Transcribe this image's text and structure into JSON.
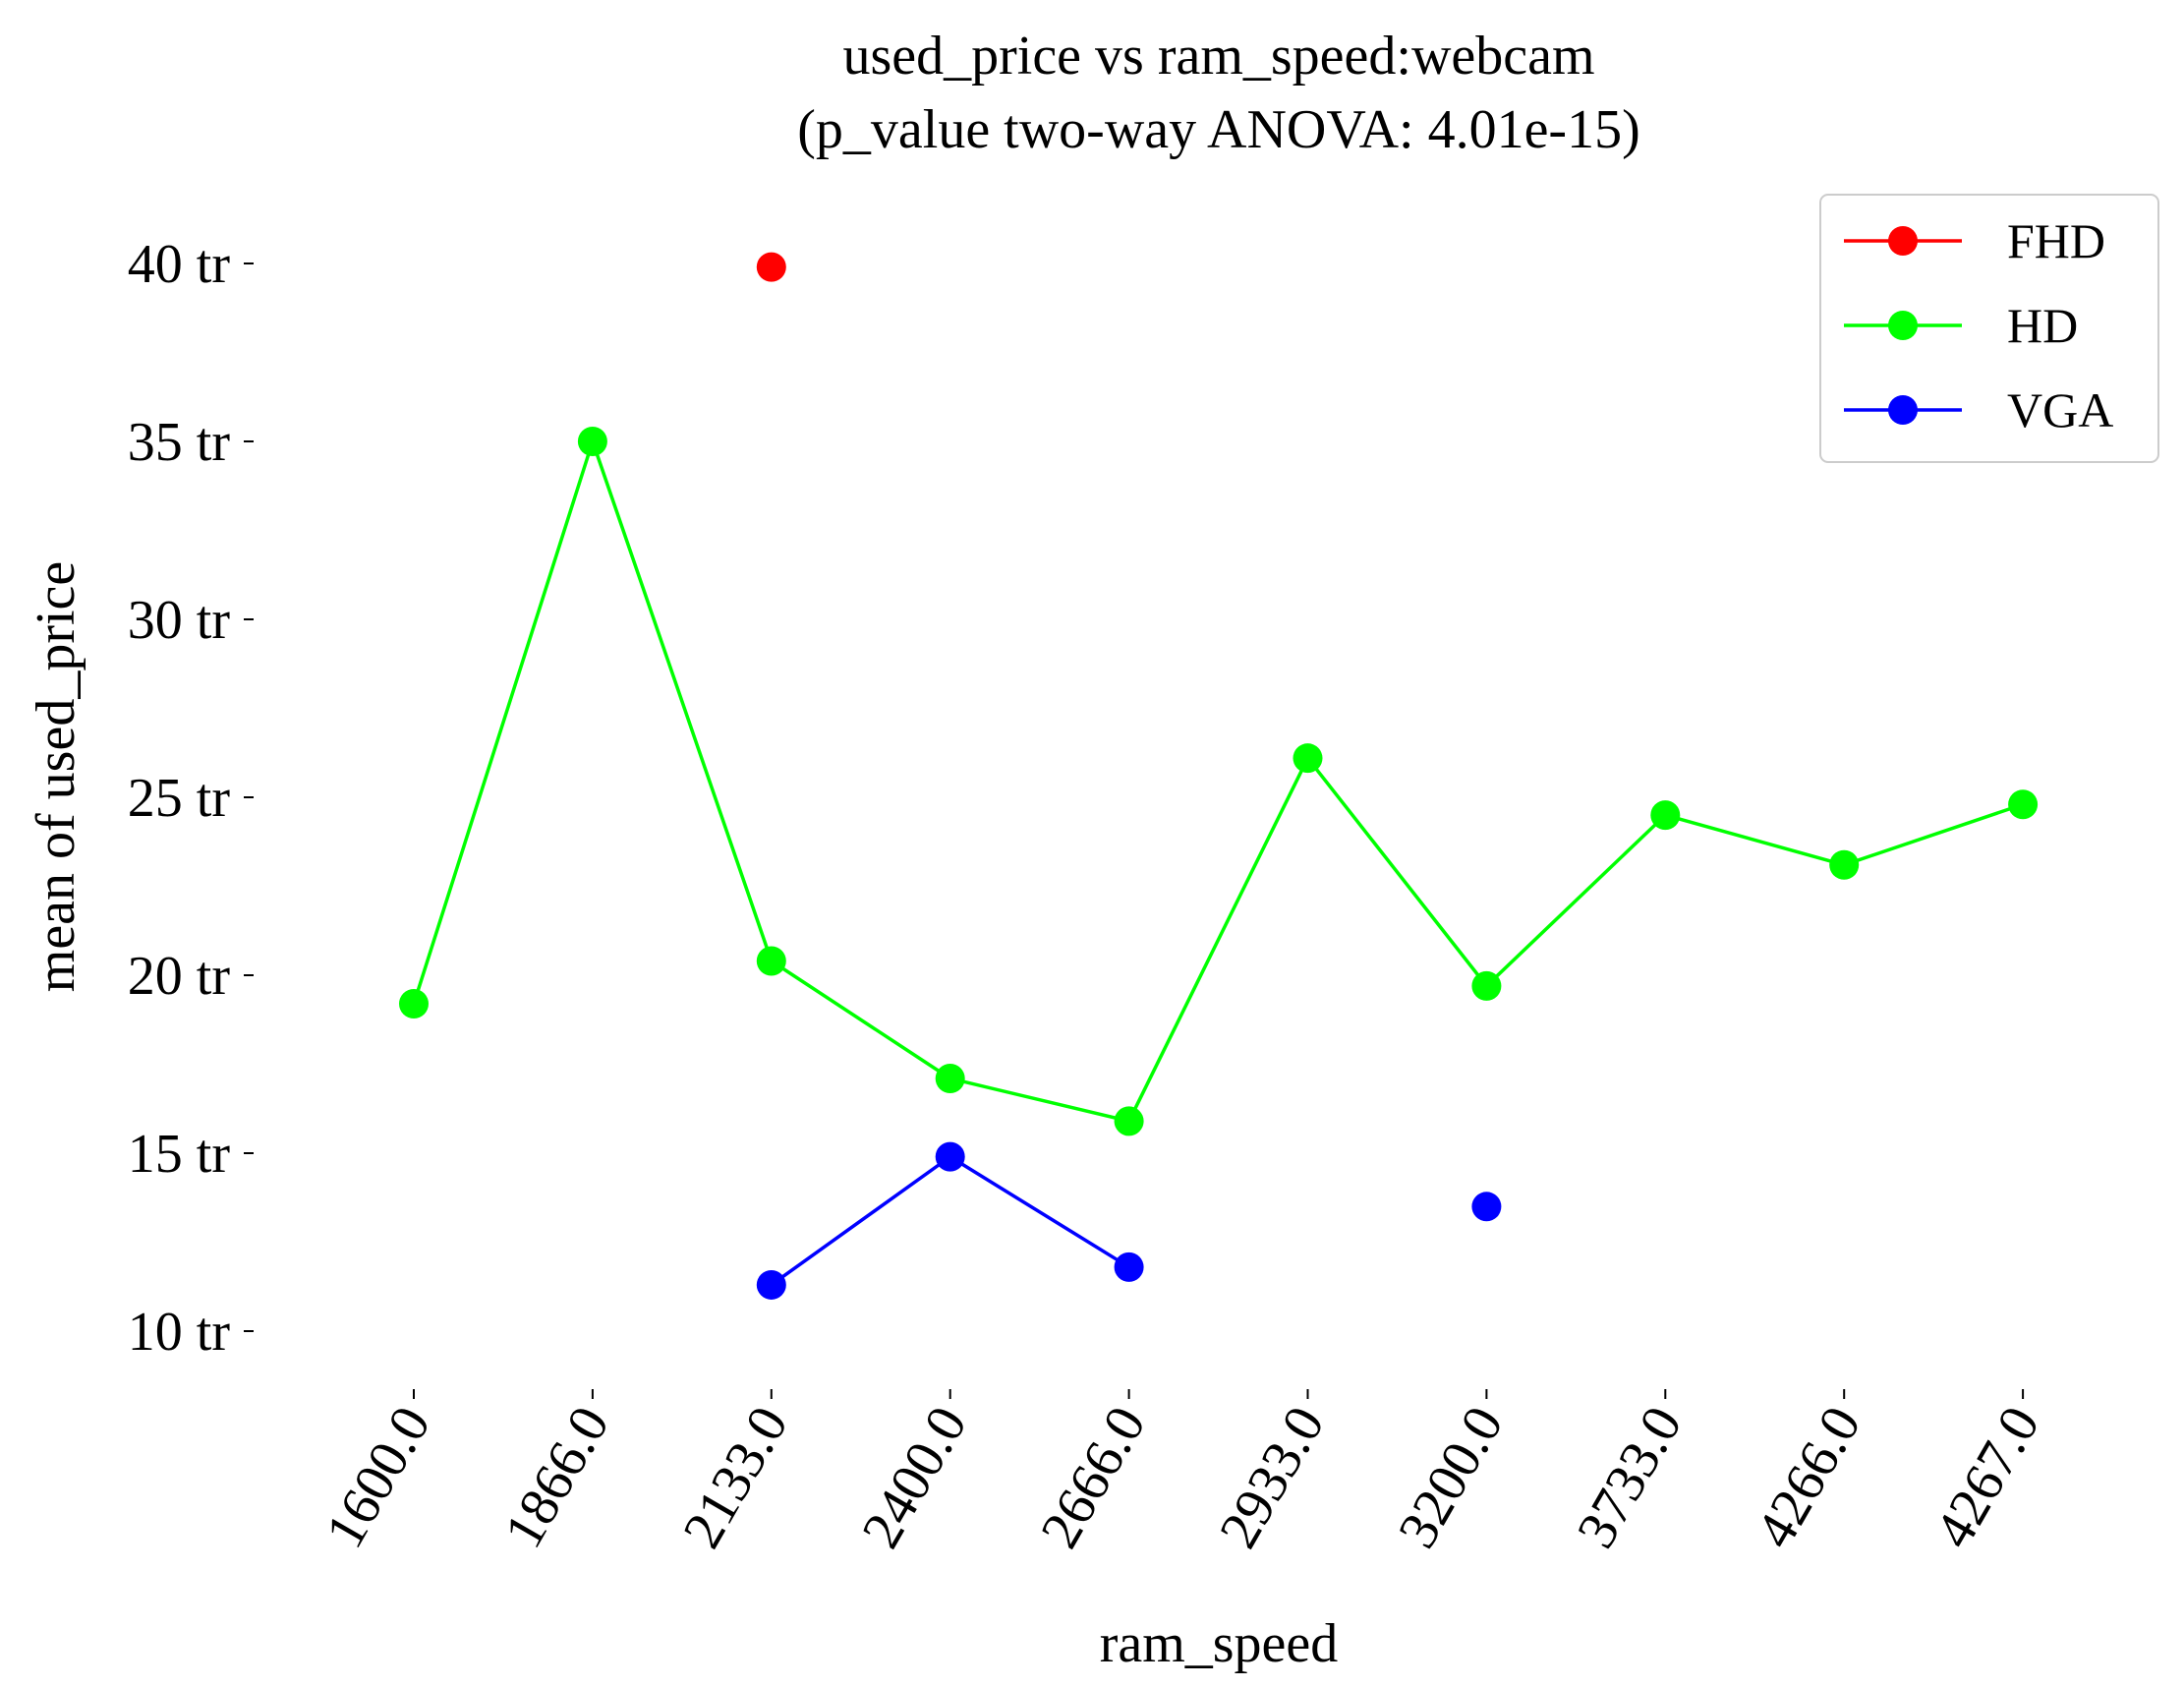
{
  "chart_data": {
    "type": "line",
    "title_line1": "used_price vs ram_speed:webcam",
    "title_line2": "(p_value two-way ANOVA: 4.01e-15)",
    "xlabel": "ram_speed",
    "ylabel": "mean of used_price",
    "categories": [
      "1600.0",
      "1866.0",
      "2133.0",
      "2400.0",
      "2666.0",
      "2933.0",
      "3200.0",
      "3733.0",
      "4266.0",
      "4267.0"
    ],
    "ylim": [
      8.5,
      42
    ],
    "yticks": [
      10,
      15,
      20,
      25,
      30,
      35,
      40
    ],
    "ytick_labels": [
      "10 tr",
      "15 tr",
      "20 tr",
      "25 tr",
      "30 tr",
      "35 tr",
      "40 tr"
    ],
    "grid": false,
    "legend_position": "top-right",
    "series": [
      {
        "name": "FHD",
        "color": "#ff0000",
        "values": [
          null,
          null,
          39.9,
          null,
          null,
          null,
          null,
          null,
          null,
          null
        ]
      },
      {
        "name": "HD",
        "color": "#00ff00",
        "values": [
          19.2,
          35.0,
          20.4,
          17.1,
          15.9,
          26.1,
          19.7,
          24.5,
          23.1,
          24.8
        ]
      },
      {
        "name": "VGA",
        "color": "#0000ff",
        "values": [
          null,
          null,
          11.3,
          14.9,
          11.8,
          null,
          13.5,
          null,
          null,
          null
        ]
      }
    ]
  }
}
